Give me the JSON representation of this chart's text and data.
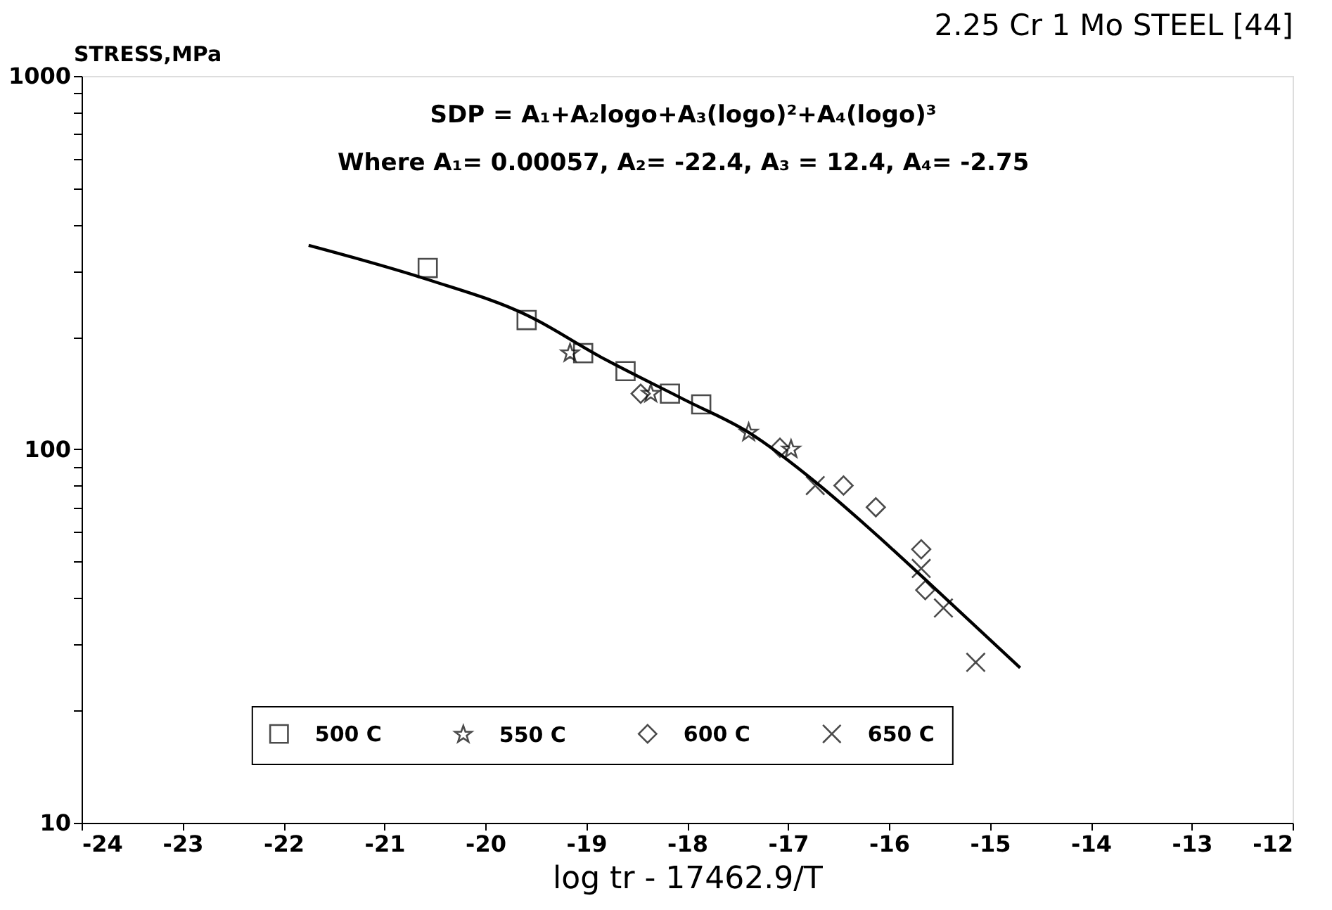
{
  "chart_data": {
    "type": "scatter",
    "title": "2.25 Cr 1 Mo STEEL [44]",
    "xlabel": "log tr - 17462.9/T",
    "ylabel": "STRESS,MPa",
    "annotations": [
      "SDP = A₁+A₂logo+A₃(logo)²+A₄(logo)³",
      "Where A₁= 0.00057, A₂= -22.4, A₃ = 12.4, A₄= -2.75"
    ],
    "series": [
      {
        "type": "line",
        "color": "#000000",
        "marker": "none",
        "x": [
          -21.75,
          -20.57,
          -19.59,
          -18.86,
          -18.03,
          -17.39,
          -16.7,
          -16.24,
          -15.6,
          -14.7
        ],
        "values": [
          352,
          285,
          229,
          177,
          136,
          111,
          80.6,
          63,
          43.8,
          26
        ]
      },
      {
        "name": "500 C",
        "marker": "square",
        "color": "#000000",
        "x": [
          -20.57,
          -19.59,
          -19.03,
          -18.61,
          -18.17,
          -17.86
        ],
        "values": [
          306,
          222,
          181,
          162,
          141,
          132
        ]
      },
      {
        "name": "550 C",
        "marker": "star",
        "color": "#000000",
        "x": [
          -19.16,
          -18.36,
          -17.39,
          -16.97
        ],
        "values": [
          181,
          141,
          111,
          100
        ]
      },
      {
        "name": "600 C",
        "marker": "diamond",
        "color": "#000000",
        "x": [
          -18.46,
          -17.08,
          -16.45,
          -16.13,
          -15.68,
          -15.64
        ],
        "values": [
          141,
          101,
          80,
          70,
          54,
          42
        ]
      },
      {
        "name": "650 C",
        "marker": "cross",
        "color": "#000000",
        "x": [
          -16.73,
          -15.68,
          -15.46,
          -15.14
        ],
        "values": [
          80,
          48,
          37.6,
          26.9
        ]
      }
    ],
    "xlim": [
      -24,
      -12
    ],
    "xticks": [
      -24,
      -23,
      -22,
      -21,
      -20,
      -19,
      -18,
      -17,
      -16,
      -15,
      -14,
      -13,
      -12
    ],
    "ylim": [
      10,
      1000
    ],
    "log": true,
    "yticks": [
      10,
      {
        "value": 20,
        "label": null
      },
      {
        "value": 30,
        "label": null
      },
      {
        "value": 40,
        "label": null
      },
      {
        "value": 50,
        "label": null
      },
      {
        "value": 60,
        "label": null
      },
      {
        "value": 70,
        "label": null
      },
      {
        "value": 80,
        "label": null
      },
      {
        "value": 90,
        "label": null
      },
      100,
      {
        "value": 200,
        "label": null
      },
      {
        "value": 300,
        "label": null
      },
      {
        "value": 400,
        "label": null
      },
      {
        "value": 500,
        "label": null
      },
      {
        "value": 600,
        "label": null
      },
      {
        "value": 700,
        "label": null
      },
      {
        "value": 800,
        "label": null
      },
      {
        "value": 900,
        "label": null
      },
      1000
    ],
    "grid": false,
    "legend": "bottom"
  }
}
